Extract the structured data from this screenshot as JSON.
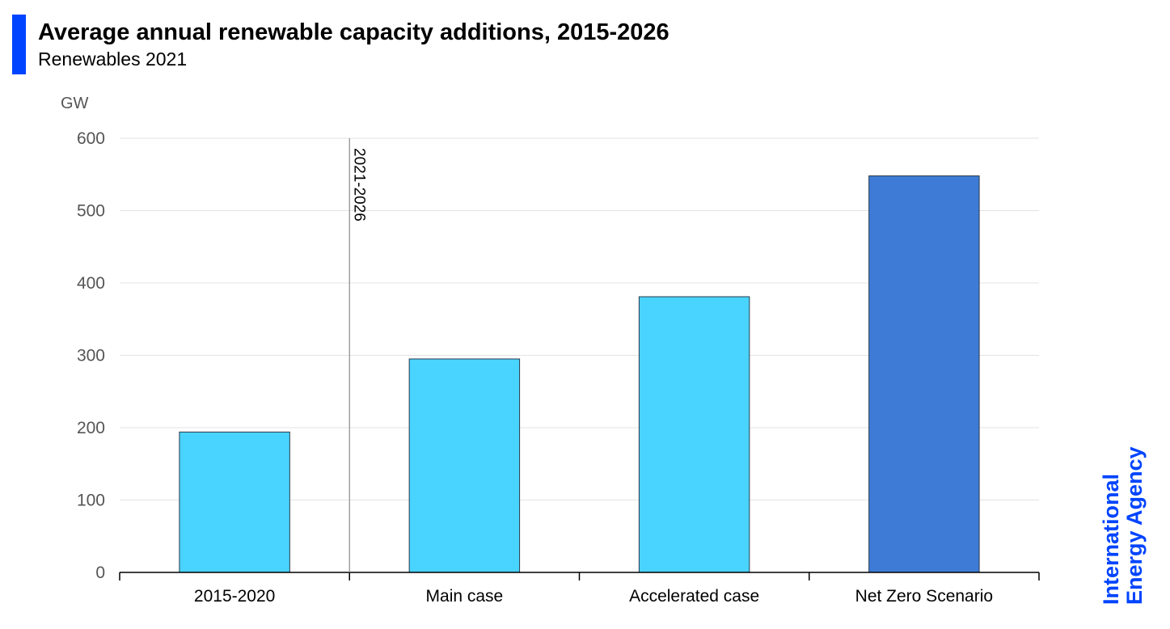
{
  "header": {
    "title": "Average annual renewable capacity additions, 2015-2026",
    "subtitle": "Renewables 2021"
  },
  "branding": {
    "line1": "International",
    "line2": "Energy Agency",
    "color": "#0044ff"
  },
  "chart_data": {
    "type": "bar",
    "title": "Average annual renewable capacity additions, 2015-2026",
    "subtitle": "Renewables 2021",
    "unit": "GW",
    "xlabel": "",
    "ylabel": "",
    "ylim": [
      0,
      600
    ],
    "yticks": [
      0,
      100,
      200,
      300,
      400,
      500,
      600
    ],
    "categories": [
      "2015-2020",
      "Main case",
      "Accelerated case",
      "Net Zero Scenario"
    ],
    "values": [
      194,
      295,
      381,
      548
    ],
    "bar_colors": [
      "#49d3ff",
      "#49d3ff",
      "#49d3ff",
      "#3e7bd6"
    ],
    "grid": true,
    "legend": "none",
    "annotation": {
      "label": "2021-2026",
      "type": "vertical-divider",
      "between": [
        "2015-2020",
        "Main case"
      ]
    }
  }
}
